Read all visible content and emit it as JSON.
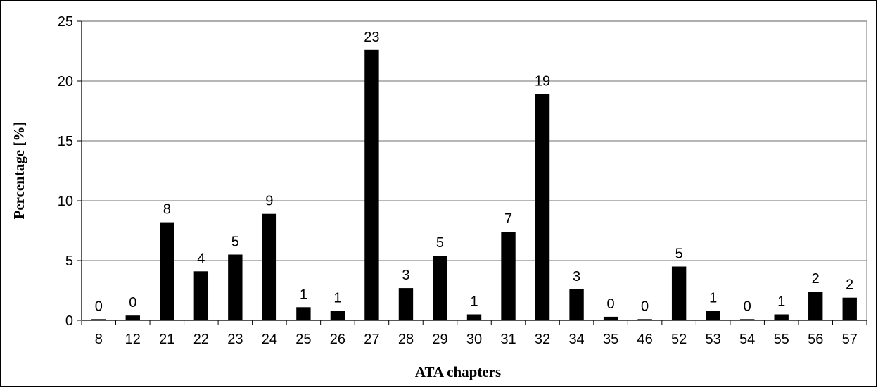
{
  "chart_data": {
    "type": "bar",
    "title": "",
    "xlabel": "ATA chapters",
    "ylabel": "Percentage [%]",
    "ylim": [
      0,
      25
    ],
    "yticks": [
      0,
      5,
      10,
      15,
      20,
      25
    ],
    "grid": true,
    "legend": "none",
    "bar_color": "#000000",
    "categories": [
      "8",
      "12",
      "21",
      "22",
      "23",
      "24",
      "25",
      "26",
      "27",
      "28",
      "29",
      "30",
      "31",
      "32",
      "34",
      "35",
      "46",
      "52",
      "53",
      "54",
      "55",
      "56",
      "57"
    ],
    "values": [
      0.1,
      0.4,
      8.2,
      4.1,
      5.5,
      8.9,
      1.1,
      0.8,
      22.6,
      2.7,
      5.4,
      0.5,
      7.4,
      18.9,
      2.6,
      0.3,
      0.1,
      4.5,
      0.8,
      0.1,
      0.5,
      2.4,
      1.9
    ],
    "data_labels": [
      "0",
      "0",
      "8",
      "4",
      "5",
      "9",
      "1",
      "1",
      "23",
      "3",
      "5",
      "1",
      "7",
      "19",
      "3",
      "0",
      "0",
      "5",
      "1",
      "0",
      "1",
      "2",
      "2"
    ]
  }
}
